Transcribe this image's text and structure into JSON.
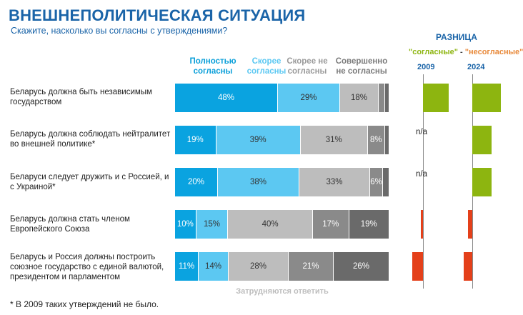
{
  "header": {
    "title": "ВНЕШНЕПОЛИТИЧЕСКАЯ СИТУАЦИЯ",
    "subtitle": "Скажите, насколько вы согласны с утверждениями?"
  },
  "legend": [
    {
      "label": "Полностью согласны",
      "color": "#0aa3e0"
    },
    {
      "label": "Скорее согласны",
      "color": "#5cc8f2"
    },
    {
      "label": "Скорее не согласны",
      "color": "#bdbdbd"
    },
    {
      "label": "Совершенно не согласны",
      "color": "#8a8a8a"
    },
    {
      "label": "Затрудняются ответить",
      "color": "#6a6a6a"
    }
  ],
  "diff_header": {
    "title": "РАЗНИЦА",
    "agree": "\"согласные\"",
    "sep": " - ",
    "disagree": "\"несогласные\"",
    "year1": "2009",
    "year2": "2024"
  },
  "colors": {
    "full_agree": "#0aa3e0",
    "rather_agree": "#5cc8f2",
    "rather_disagree": "#bdbdbd",
    "full_disagree": "#8a8a8a",
    "no_answer": "#6a6a6a",
    "positive": "#8db510",
    "negative": "#e4401a",
    "title": "#1a64a8",
    "agree_text": "#8db510",
    "disagree_text": "#e8893a"
  },
  "chart_data": {
    "type": "bar",
    "orientation": "horizontal-stacked-100",
    "categories": [
      "Беларусь должна быть независимым государством",
      "Беларусь должна соблюдать нейтралитет во внешней политике*",
      "Беларуси следует дружить и с Россией, и с Украиной*",
      "Беларусь должна стать членом Европейского Союза",
      "Беларусь и Россия должны построить союзное государство с единой валютой, президентом и парламентом"
    ],
    "series": [
      {
        "name": "Полностью согласны",
        "values": [
          48,
          19,
          20,
          10,
          11
        ],
        "labels": [
          "48%",
          "19%",
          "20%",
          "10%",
          "11%"
        ]
      },
      {
        "name": "Скорее согласны",
        "values": [
          29,
          39,
          38,
          15,
          14
        ],
        "labels": [
          "29%",
          "39%",
          "38%",
          "15%",
          "14%"
        ]
      },
      {
        "name": "Скорее не согласны",
        "values": [
          18,
          31,
          33,
          40,
          28
        ],
        "labels": [
          "18%",
          "31%",
          "33%",
          "40%",
          "28%"
        ]
      },
      {
        "name": "Совершенно не согласны",
        "values": [
          3,
          8,
          6,
          17,
          21
        ],
        "labels": [
          "",
          "8%",
          "6%",
          "17%",
          "21%"
        ]
      },
      {
        "name": "Затрудняются ответить",
        "values": [
          2,
          2,
          3,
          19,
          26
        ],
        "labels": [
          "",
          "",
          "",
          "19%",
          "26%"
        ]
      }
    ],
    "difference": {
      "2009": [
        60,
        null,
        null,
        -5,
        -25
      ],
      "2024": [
        66,
        45,
        45,
        -10,
        -20
      ],
      "na_labels": [
        "",
        "n/a",
        "n/a",
        "",
        ""
      ]
    }
  },
  "footnote": "* В 2009 таких утверждений не было."
}
